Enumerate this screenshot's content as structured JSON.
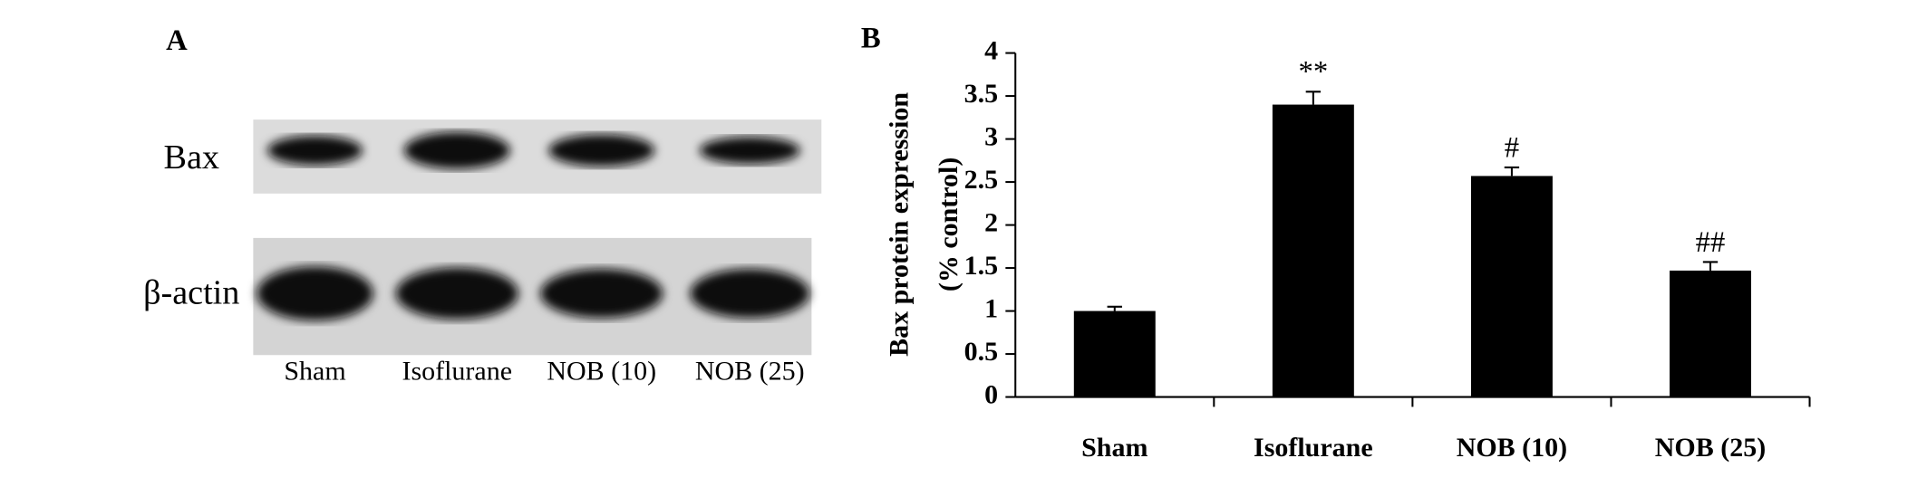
{
  "panel_a": {
    "label": "A",
    "rows": [
      "Bax",
      "β-actin"
    ],
    "lanes": [
      "Sham",
      "Isoflurane",
      "NOB (10)",
      "NOB (25)"
    ]
  },
  "chart_data": {
    "type": "bar",
    "panel_label": "B",
    "y_label": [
      "Bax protein expression",
      "(% control)"
    ],
    "categories": [
      "Sham",
      "Isoflurane",
      "NOB (10)",
      "NOB (25)"
    ],
    "values": [
      1.0,
      3.4,
      2.57,
      1.47
    ],
    "errors": [
      0.05,
      0.15,
      0.1,
      0.1
    ],
    "annotations": [
      null,
      "**",
      "#",
      "##"
    ],
    "color": "#000000",
    "ylim": [
      0,
      4
    ],
    "yticks": [
      0,
      0.5,
      1,
      1.5,
      2,
      2.5,
      3,
      3.5,
      4
    ]
  }
}
